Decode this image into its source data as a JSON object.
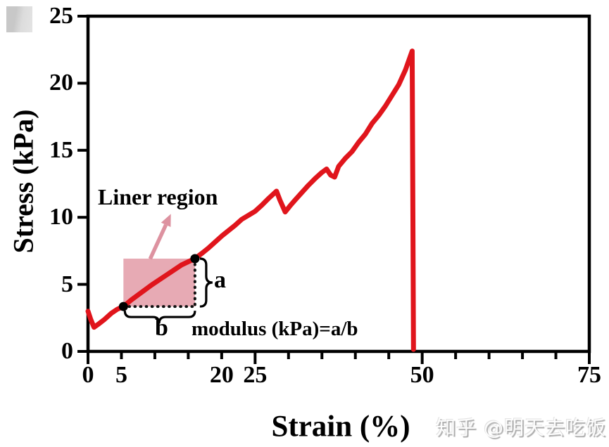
{
  "chart_data": {
    "type": "line",
    "xlabel": "Strain (%)",
    "ylabel": "Stress (kPa)",
    "xlim": [
      0,
      75
    ],
    "ylim": [
      0,
      25
    ],
    "grid": false,
    "legend": "none",
    "frame": "full-box",
    "axis_color": "#000000",
    "x_ticks": {
      "minor_step": 5,
      "major": [
        0,
        25,
        50,
        75
      ],
      "labels": [
        {
          "value": 0,
          "text": "0"
        },
        {
          "value": 5,
          "text": "5"
        },
        {
          "value": 20,
          "text": "20"
        },
        {
          "value": 25,
          "text": "25"
        },
        {
          "value": 50,
          "text": "50"
        },
        {
          "value": 75,
          "text": "75"
        }
      ]
    },
    "y_ticks": {
      "labels": [
        {
          "value": 0,
          "text": "0"
        },
        {
          "value": 5,
          "text": "5"
        },
        {
          "value": 10,
          "text": "10"
        },
        {
          "value": 15,
          "text": "15"
        },
        {
          "value": 20,
          "text": "20"
        },
        {
          "value": 25,
          "text": "25"
        }
      ]
    },
    "series": [
      {
        "name": "stress-strain-curve",
        "color": "#e0151c",
        "points": [
          [
            0,
            3.0
          ],
          [
            0.4,
            2.4
          ],
          [
            0.9,
            1.8
          ],
          [
            1.6,
            2.05
          ],
          [
            2.5,
            2.4
          ],
          [
            3.5,
            2.85
          ],
          [
            4.4,
            3.15
          ],
          [
            5.3,
            3.35
          ],
          [
            6.5,
            3.85
          ],
          [
            8,
            4.4
          ],
          [
            9.5,
            4.95
          ],
          [
            11,
            5.45
          ],
          [
            12.5,
            5.95
          ],
          [
            14,
            6.45
          ],
          [
            16,
            6.92
          ],
          [
            17,
            7.3
          ],
          [
            18,
            7.7
          ],
          [
            19,
            8.15
          ],
          [
            20,
            8.6
          ],
          [
            21,
            9.0
          ],
          [
            22,
            9.4
          ],
          [
            23,
            9.85
          ],
          [
            24,
            10.15
          ],
          [
            25,
            10.45
          ],
          [
            26,
            10.9
          ],
          [
            27,
            11.4
          ],
          [
            28.2,
            11.95
          ],
          [
            28.7,
            11.3
          ],
          [
            29.5,
            10.4
          ],
          [
            30.3,
            10.9
          ],
          [
            31,
            11.3
          ],
          [
            32,
            11.85
          ],
          [
            33,
            12.4
          ],
          [
            34,
            12.9
          ],
          [
            35,
            13.35
          ],
          [
            35.7,
            13.6
          ],
          [
            36.3,
            13.15
          ],
          [
            36.9,
            13.0
          ],
          [
            37.5,
            13.8
          ],
          [
            38.5,
            14.4
          ],
          [
            39.5,
            14.9
          ],
          [
            40.5,
            15.6
          ],
          [
            41.5,
            16.2
          ],
          [
            42.5,
            17.0
          ],
          [
            43.5,
            17.6
          ],
          [
            44.5,
            18.3
          ],
          [
            45.5,
            19.1
          ],
          [
            46.5,
            19.9
          ],
          [
            47.5,
            21.0
          ],
          [
            48.5,
            22.4
          ],
          [
            48.7,
            0.15
          ]
        ]
      }
    ],
    "annotations": {
      "linear_region_label": "Liner region",
      "a_label": "a",
      "b_label": "b",
      "modulus_formula": "modulus (kPa)=a/b",
      "region": {
        "x1": 5.3,
        "y1": 3.35,
        "x2": 16.0,
        "y2": 6.92,
        "fill": "#e7aab4"
      },
      "endpoints": [
        [
          5.3,
          3.35
        ],
        [
          16.0,
          6.92
        ]
      ],
      "point_color": "#000000",
      "arrow": {
        "tail": [
          9.3,
          6.9
        ],
        "head": [
          12.4,
          10.25
        ],
        "color": "#dd92a0"
      },
      "brace_color": "#000000",
      "dotted_line_color": "#111111"
    }
  },
  "watermark": {
    "text": "知乎 @明天去吃饭"
  },
  "logo_box": {
    "color": "#cccccc"
  }
}
